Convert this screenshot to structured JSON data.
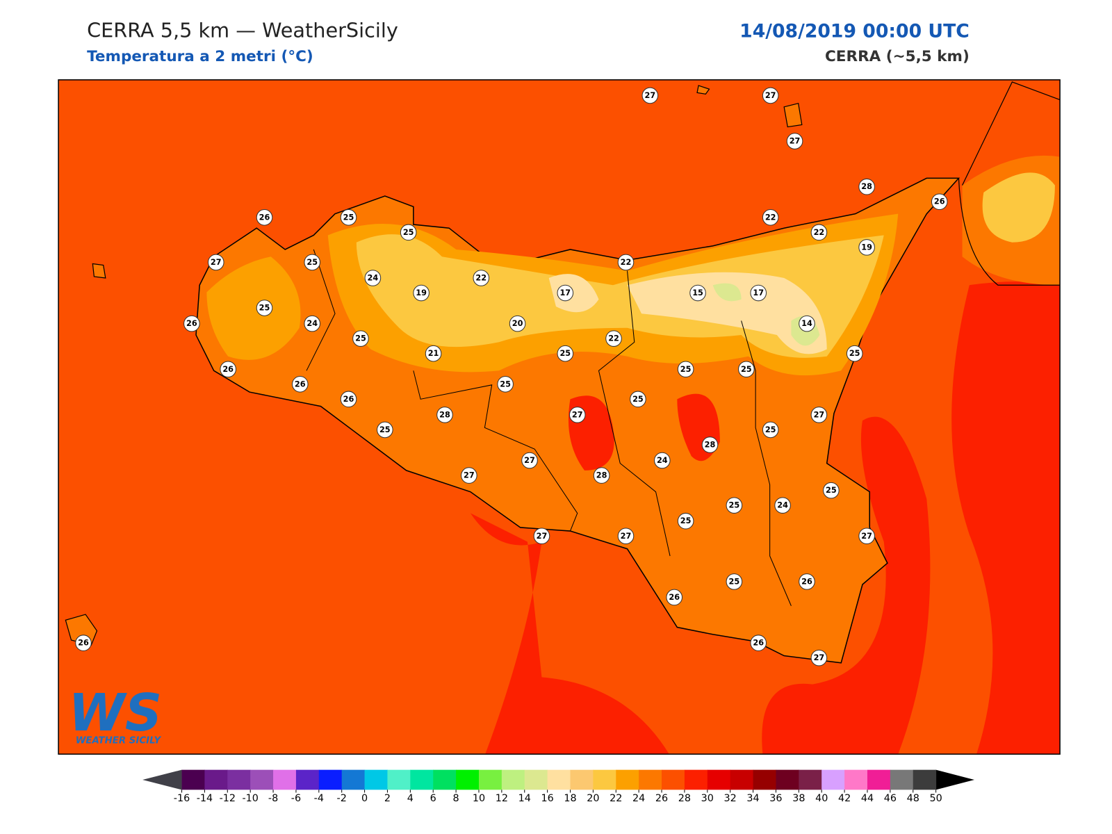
{
  "header": {
    "title": "CERRA 5,5 km — WeatherSicily",
    "subtitle": "Temperatura a 2 metri (°C)",
    "datetime": "14/08/2019 00:00 UTC",
    "model": "CERRA (~5,5 km)"
  },
  "stations": [
    27,
    27,
    27,
    28,
    26,
    26,
    25,
    25,
    22,
    22,
    19,
    27,
    25,
    24,
    22,
    22,
    19,
    17,
    15,
    17,
    25,
    26,
    24,
    20,
    14,
    25,
    22,
    21,
    25,
    25,
    26,
    25,
    25,
    26,
    25,
    26,
    25,
    28,
    27,
    27,
    25,
    25,
    28,
    27,
    24,
    27,
    28,
    25,
    25,
    24,
    25,
    27,
    27,
    27,
    26,
    25,
    26,
    26,
    27,
    26
  ],
  "logo": "WEATHER SICILY",
  "colorbar": {
    "ticks": [
      -16,
      -14,
      -12,
      -10,
      -8,
      -6,
      -4,
      -2,
      0,
      2,
      4,
      6,
      8,
      10,
      12,
      14,
      16,
      18,
      20,
      22,
      24,
      26,
      28,
      30,
      32,
      34,
      36,
      38,
      40,
      42,
      44,
      46,
      48,
      50
    ],
    "colors": [
      "#4b0050",
      "#6a1a8a",
      "#7b2fa0",
      "#9c4fb8",
      "#e070e8",
      "#5b24c8",
      "#0a1eff",
      "#1478d4",
      "#00c8e6",
      "#50f0c8",
      "#00e6a0",
      "#00e060",
      "#00f000",
      "#78f040",
      "#bef080",
      "#dce890",
      "#ffe0a0",
      "#fcc870",
      "#fcc840",
      "#fca000",
      "#fc7800",
      "#fc5000",
      "#fc2000",
      "#e60000",
      "#c80000",
      "#960000",
      "#6e0020",
      "#7a2048",
      "#d8a0ff",
      "#ff78c8",
      "#f01e96",
      "#787878",
      "#3c3c3c"
    ],
    "under": "#404048",
    "over": "#000000"
  }
}
